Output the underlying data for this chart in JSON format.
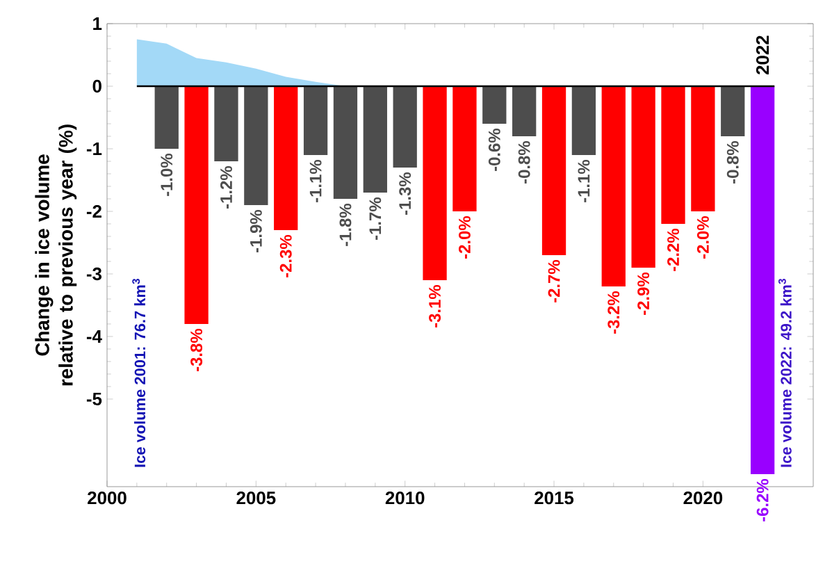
{
  "chart_data": {
    "type": "bar",
    "ylabel": "Change in ice volume relative to previous year (%)",
    "xlim": [
      2000,
      2023.7
    ],
    "xticks": [
      2000,
      2005,
      2010,
      2015,
      2020
    ],
    "ylim": [
      -6.4,
      1
    ],
    "yticks": [
      -5,
      -4,
      -3,
      -2,
      -1,
      0,
      1
    ],
    "series": [
      {
        "type": "area",
        "color": "#a3d9f7",
        "x": [
          2001,
          2002,
          2003,
          2004,
          2005,
          2006,
          2007,
          2008
        ],
        "values": [
          0.75,
          0.68,
          0.45,
          0.38,
          0.28,
          0.15,
          0.07,
          0
        ]
      },
      {
        "x": [
          2002,
          2003,
          2004,
          2005,
          2006,
          2007,
          2008,
          2009,
          2010,
          2011,
          2012,
          2013,
          2014,
          2015,
          2016,
          2017,
          2018,
          2019,
          2020,
          2021,
          2022
        ],
        "values": [
          -1.0,
          -3.8,
          -1.2,
          -1.9,
          -2.3,
          -1.1,
          -1.8,
          -1.7,
          -1.3,
          -3.1,
          -2.0,
          -0.6,
          -0.8,
          -2.7,
          -1.1,
          -3.2,
          -2.9,
          -2.2,
          -2.0,
          -0.8,
          -6.2
        ],
        "colors": [
          "#4d4d4d",
          "#ff0000",
          "#4d4d4d",
          "#4d4d4d",
          "#ff0000",
          "#4d4d4d",
          "#4d4d4d",
          "#4d4d4d",
          "#4d4d4d",
          "#ff0000",
          "#ff0000",
          "#4d4d4d",
          "#4d4d4d",
          "#ff0000",
          "#4d4d4d",
          "#ff0000",
          "#ff0000",
          "#ff0000",
          "#ff0000",
          "#4d4d4d",
          "#9900ff"
        ],
        "value_labels": [
          "-1.0%",
          "-3.8%",
          "-1.2%",
          "-1.9%",
          "-2.3%",
          "-1.1%",
          "-1.8%",
          "-1.7%",
          "-1.3%",
          "-3.1%",
          "-2.0%",
          "-0.6%",
          "-0.8%",
          "-2.7%",
          "-1.1%",
          "-3.2%",
          "-2.9%",
          "-2.2%",
          "-2.0%",
          "-0.8%",
          "-6.2%"
        ]
      }
    ],
    "ref_lines": [
      {
        "axis": "y",
        "value": 0,
        "color": "#000000"
      }
    ],
    "annotations": [
      {
        "text": "2022",
        "x": 2022,
        "y": 0.1
      },
      "Ice volume 2001: 76.7 km$^{3}$",
      "Ice volume 2022: 49.2 km$^{3}$"
    ]
  }
}
